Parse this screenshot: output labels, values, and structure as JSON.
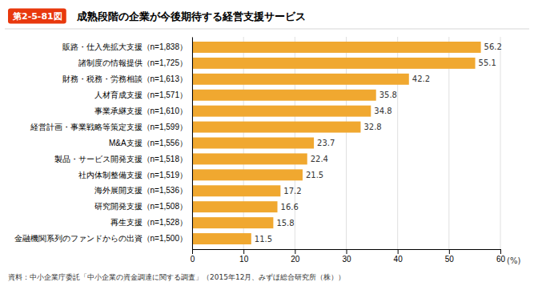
{
  "chart_data": {
    "type": "bar",
    "orientation": "horizontal",
    "title": "成熟段階の企業が今後期待する経営支援サービス",
    "annotations": [
      "第2-5-81図",
      "資料：中小企業庁委託「中小企業の資金調達に関する調査」（2015年12月、みずほ総合研究所（株））"
    ],
    "categories": [
      "販路・仕入先拡大支援（n=1,838）",
      "諸制度の情報提供（n=1,725）",
      "財務・税務・労務相談（n=1,613）",
      "人材育成支援（n=1,571）",
      "事業承継支援（n=1,610）",
      "経営計画・事業戦略等策定支援（n=1,599）",
      "M&A支援（n=1,556）",
      "製品・サービス開発支援（n=1,518）",
      "社内体制整備支援（n=1,519）",
      "海外展開支援（n=1,536）",
      "研究開発支援（n=1,508）",
      "再生支援（n=1,528）",
      "金融機関系列のファンドからの出資（n=1,500）"
    ],
    "values": [
      56.2,
      55.1,
      42.2,
      35.8,
      34.8,
      32.8,
      23.7,
      22.4,
      21.5,
      17.2,
      16.6,
      15.8,
      11.5
    ],
    "color": "#F0A830",
    "xlabel": "(%)",
    "xlim": [
      0,
      60
    ],
    "xticks": [
      0,
      10,
      20,
      30,
      40,
      50,
      60
    ],
    "grid": true,
    "data_labels": true
  }
}
